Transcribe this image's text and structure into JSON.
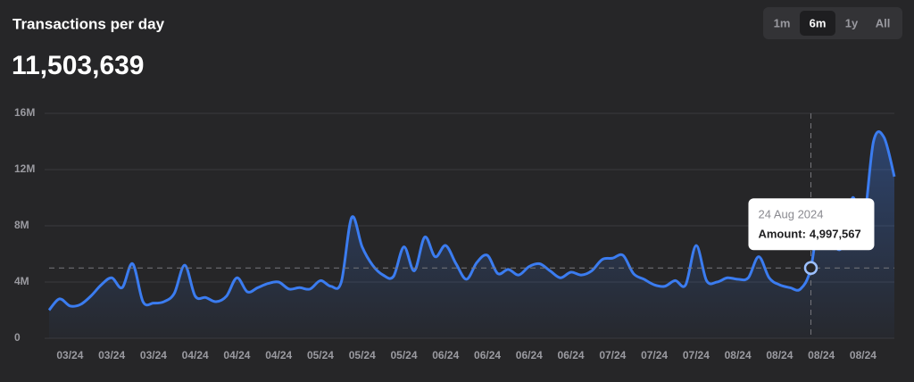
{
  "chart_data": {
    "type": "line",
    "title": "Transactions per day",
    "headline": "11,503,639",
    "ranges": [
      "1m",
      "6m",
      "1y",
      "All"
    ],
    "active_range": 1,
    "categories": [
      null,
      null,
      "03/24",
      null,
      null,
      null,
      "03/24",
      null,
      null,
      null,
      "03/24",
      null,
      null,
      null,
      "04/24",
      null,
      null,
      null,
      "04/24",
      null,
      null,
      null,
      "04/24",
      null,
      null,
      null,
      "05/24",
      null,
      null,
      null,
      "05/24",
      null,
      null,
      null,
      "05/24",
      null,
      null,
      null,
      "06/24",
      null,
      null,
      null,
      "06/24",
      null,
      null,
      null,
      "06/24",
      null,
      null,
      null,
      "06/24",
      null,
      null,
      null,
      "07/24",
      null,
      null,
      null,
      "07/24",
      null,
      null,
      null,
      "07/24",
      null,
      null,
      null,
      "08/24",
      null,
      null,
      null,
      "08/24",
      null,
      null,
      null,
      "08/24",
      null,
      null,
      null,
      "08/24",
      null,
      null,
      null
    ],
    "series": [
      {
        "name": "Amount:",
        "color": "#3b7cf0",
        "values": [
          2000000,
          2800000,
          2300000,
          2400000,
          3000000,
          3800000,
          4300000,
          3600000,
          5300000,
          2600000,
          2500000,
          2600000,
          3200000,
          5200000,
          3000000,
          2900000,
          2600000,
          3000000,
          4300000,
          3300000,
          3600000,
          3900000,
          4000000,
          3500000,
          3600000,
          3500000,
          4100000,
          3700000,
          4000000,
          8600000,
          6500000,
          5200000,
          4500000,
          4400000,
          6500000,
          4800000,
          7200000,
          5800000,
          6600000,
          5300000,
          4200000,
          5400000,
          5900000,
          4600000,
          4900000,
          4500000,
          5100000,
          5300000,
          4800000,
          4300000,
          4700000,
          4500000,
          4800000,
          5600000,
          5700000,
          5900000,
          4600000,
          4200000,
          3800000,
          3700000,
          4100000,
          3800000,
          6600000,
          4100000,
          4000000,
          4300000,
          4200000,
          4300000,
          5800000,
          4300000,
          3800000,
          3600000,
          3500000,
          4997567,
          9500000,
          7000000,
          6500000,
          10000000,
          8000000,
          14000000,
          14300000,
          11500000
        ],
        "value_labels": [
          null,
          null,
          null,
          null,
          null,
          null,
          null,
          null,
          null,
          null,
          null,
          null,
          null,
          null,
          null,
          null,
          null,
          null,
          null,
          null,
          null,
          null,
          null,
          null,
          null,
          null,
          null,
          null,
          null,
          null,
          null,
          null,
          null,
          null,
          null,
          null,
          null,
          null,
          null,
          null,
          null,
          null,
          null,
          null,
          null,
          null,
          null,
          null,
          null,
          null,
          null,
          null,
          null,
          null,
          null,
          null,
          null,
          null,
          null,
          null,
          null,
          null,
          null,
          null,
          null,
          null,
          null,
          null,
          null,
          null,
          null,
          null,
          null,
          "4,997,567",
          null,
          null,
          null,
          null,
          null,
          null,
          null,
          null
        ]
      }
    ],
    "tooltip": {
      "date": "24 Aug 2024",
      "index": 73
    },
    "ylim": [
      0,
      16000000
    ],
    "yticks": [
      {
        "value": 0,
        "label": "0"
      },
      {
        "value": 4000000,
        "label": "4M"
      },
      {
        "value": 8000000,
        "label": "8M"
      },
      {
        "value": 12000000,
        "label": "12M"
      },
      {
        "value": 16000000,
        "label": "16M"
      }
    ],
    "grid": true
  }
}
